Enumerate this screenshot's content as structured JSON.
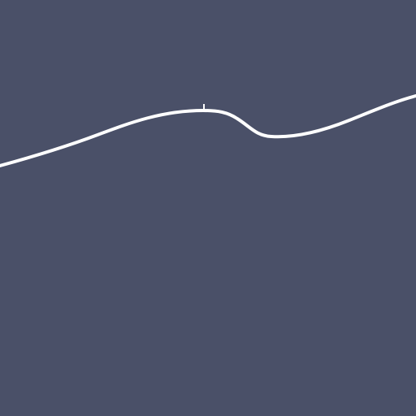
{
  "scene": {
    "background_color": "#4A5068",
    "line_color": "#FFFFFF"
  }
}
